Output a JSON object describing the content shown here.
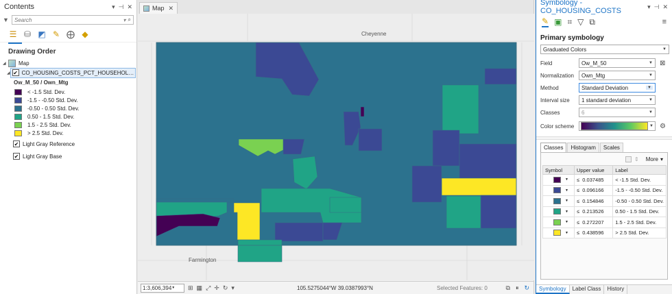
{
  "contents": {
    "title": "Contents",
    "controls": [
      "▾",
      "⊣",
      "✕"
    ],
    "search_placeholder": "Search",
    "drawing_order": "Drawing Order",
    "map_label": "Map",
    "layer_name": "CO_HOUSING_COSTS_PCT_HOUSEHOLD_INCOME",
    "field_label": "Ow_M_50 / Own_Mtg",
    "legend": [
      {
        "label": "< -1.5 Std. Dev.",
        "color": "#440154"
      },
      {
        "label": "-1.5 - -0.50 Std. Dev.",
        "color": "#3b4994"
      },
      {
        "label": "-0.50 - 0.50 Std. Dev.",
        "color": "#2c728e"
      },
      {
        "label": "0.50 - 1.5 Std. Dev.",
        "color": "#20a486"
      },
      {
        "label": "1.5 - 2.5 Std. Dev.",
        "color": "#7ad151"
      },
      {
        "label": "> 2.5 Std. Dev.",
        "color": "#fde725"
      }
    ],
    "base_layers": [
      "Light Gray Reference",
      "Light Gray Base"
    ]
  },
  "map": {
    "tab_label": "Map",
    "cities": {
      "north": "Cheyenne",
      "south": "Farmington"
    },
    "scale": "1:3,606,394",
    "coordinates": "105.5275044°W 39.0387993°N",
    "selected_features": "Selected Features: 0"
  },
  "symbology": {
    "title": "Symbology - CO_HOUSING_COSTS",
    "primary_title": "Primary symbology",
    "method_type": "Graduated Colors",
    "props": {
      "field_label": "Field",
      "field_value": "Ow_M_50",
      "normalization_label": "Normalization",
      "normalization_value": "Own_Mtg",
      "method_label": "Method",
      "method_value": "Standard Deviation",
      "interval_label": "Interval size",
      "interval_value": "1 standard deviation",
      "classes_label": "Classes",
      "classes_value": "6",
      "scheme_label": "Color scheme"
    },
    "tabs": [
      "Classes",
      "Histogram",
      "Scales"
    ],
    "more_label": "More",
    "columns": [
      "Symbol",
      "Upper value",
      "Label"
    ],
    "classes": [
      {
        "upper": "0.037485",
        "label": "< -1.5 Std. Dev.",
        "color": "#440154"
      },
      {
        "upper": "0.096166",
        "label": "-1.5 - -0.50 Std. Dev.",
        "color": "#3b4994"
      },
      {
        "upper": "0.154846",
        "label": "-0.50 - 0.50 Std. Dev.",
        "color": "#2c728e"
      },
      {
        "upper": "0.213526",
        "label": "0.50 - 1.5 Std. Dev.",
        "color": "#20a486"
      },
      {
        "upper": "0.272207",
        "label": "1.5 - 2.5 Std. Dev.",
        "color": "#7ad151"
      },
      {
        "upper": "0.438596",
        "label": "> 2.5 Std. Dev.",
        "color": "#fde725"
      }
    ],
    "bottom_tabs": [
      "Symbology",
      "Label Class",
      "History"
    ]
  }
}
